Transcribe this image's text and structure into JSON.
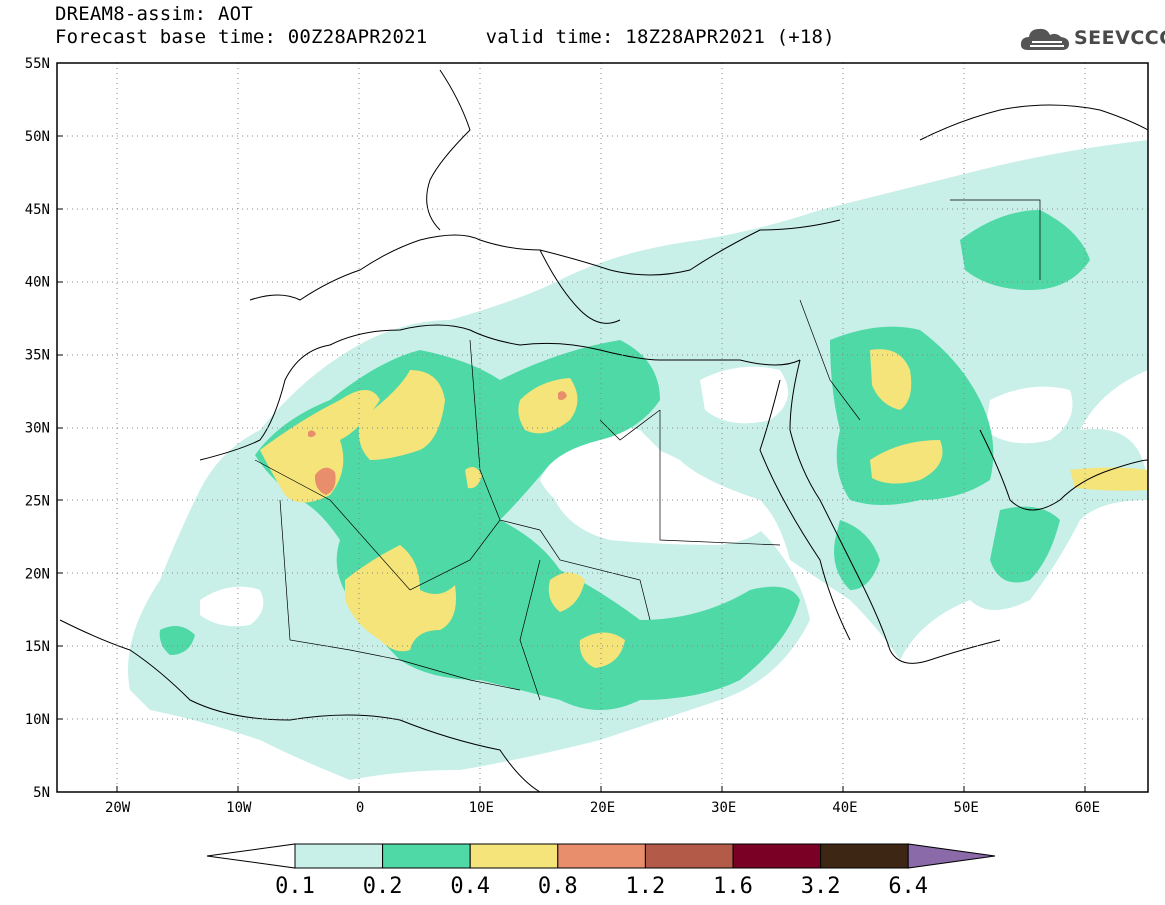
{
  "header": {
    "line1": "DREAM8-assim: AOT",
    "line2": "Forecast base time: 00Z28APR2021     valid time: 18Z28APR2021 (+18)"
  },
  "logo": {
    "text": "SEEVCCC",
    "icon": "cloud-icon"
  },
  "map": {
    "lon_range": [
      -25,
      65
    ],
    "lat_range": [
      5,
      55
    ],
    "lat_ticks": [
      "55N",
      "50N",
      "45N",
      "40N",
      "35N",
      "30N",
      "25N",
      "20N",
      "15N",
      "10N",
      "5N"
    ],
    "lon_ticks": [
      "20W",
      "10W",
      "0",
      "10E",
      "20E",
      "30E",
      "40E",
      "50E",
      "60E"
    ],
    "grid": "dotted"
  },
  "colorbar": {
    "labels": [
      "0.1",
      "0.2",
      "0.4",
      "0.8",
      "1.2",
      "1.6",
      "3.2",
      "6.4"
    ],
    "colors": [
      "#ffffff",
      "#c8f0e8",
      "#4fd9a6",
      "#f5e479",
      "#e88e6d",
      "#b35a48",
      "#7a0025",
      "#3d2614",
      "#8a6aa8"
    ]
  },
  "colors": {
    "aot_0_1": "#c8f0e8",
    "aot_0_2": "#4fd9a6",
    "aot_0_4": "#f5e479",
    "aot_0_8": "#e88e6d"
  }
}
